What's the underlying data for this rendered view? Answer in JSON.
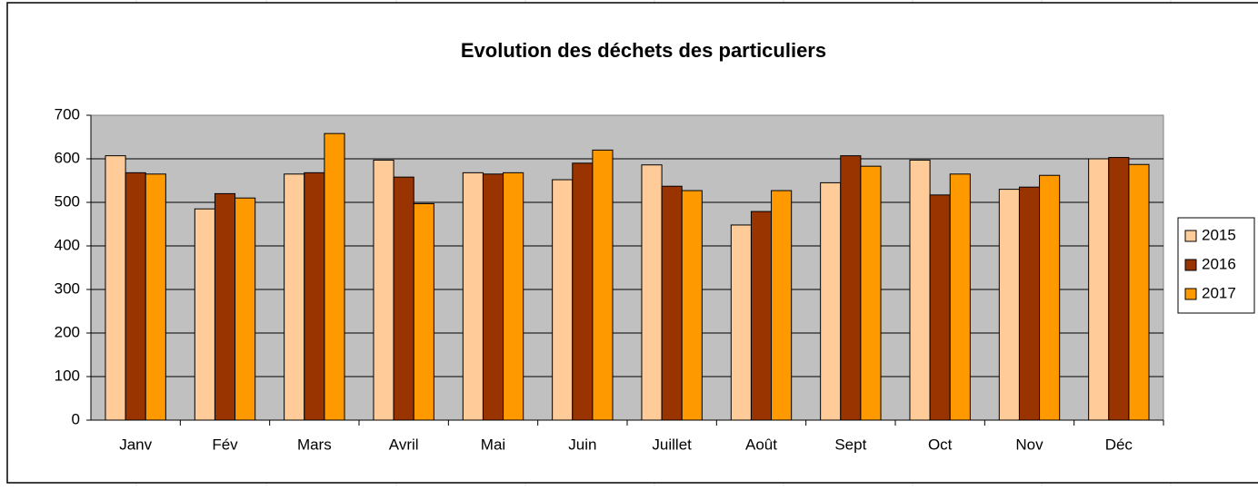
{
  "chart_data": {
    "type": "bar",
    "title": "Evolution des déchets des particuliers",
    "categories": [
      "Janv",
      "Fév",
      "Mars",
      "Avril",
      "Mai",
      "Juin",
      "Juillet",
      "Août",
      "Sept",
      "Oct",
      "Nov",
      "Déc"
    ],
    "series": [
      {
        "name": "2015",
        "color": "#ffcc99",
        "values": [
          607,
          485,
          565,
          597,
          568,
          552,
          586,
          448,
          545,
          597,
          530,
          600
        ]
      },
      {
        "name": "2016",
        "color": "#993300",
        "values": [
          568,
          520,
          568,
          558,
          565,
          590,
          537,
          479,
          607,
          517,
          535,
          603
        ]
      },
      {
        "name": "2017",
        "color": "#ff9900",
        "values": [
          565,
          510,
          658,
          497,
          568,
          620,
          527,
          527,
          583,
          565,
          562,
          587
        ]
      }
    ],
    "ylim": [
      0,
      700
    ],
    "yticks": [
      0,
      100,
      200,
      300,
      400,
      500,
      600,
      700
    ],
    "grid": true,
    "legend": "right"
  }
}
